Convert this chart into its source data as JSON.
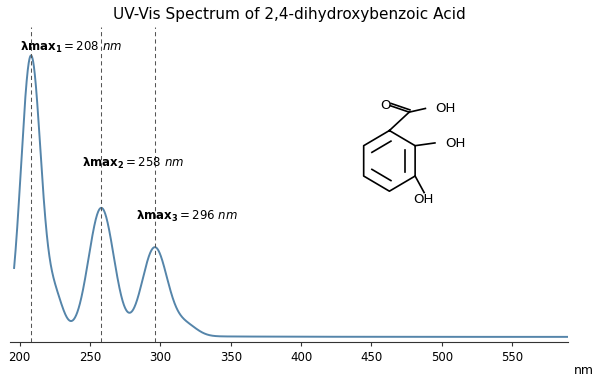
{
  "title": "UV-Vis Spectrum of 2,4-dihydroxybenzoic Acid",
  "xlabel": "nm",
  "xlim": [
    193,
    590
  ],
  "ylim": [
    -0.02,
    1.12
  ],
  "xticks": [
    200,
    250,
    300,
    350,
    400,
    450,
    500,
    550
  ],
  "peak1_wl": 208,
  "peak2_wl": 258,
  "peak3_wl": 296,
  "line_color": "#5585aa",
  "background_color": "#ffffff",
  "title_fontsize": 11,
  "annot1_text": "λmax₁ = 208 nm",
  "annot2_text": "λmax₂ = 258 nm",
  "annot3_text": "λmax₃ = 296 nm"
}
